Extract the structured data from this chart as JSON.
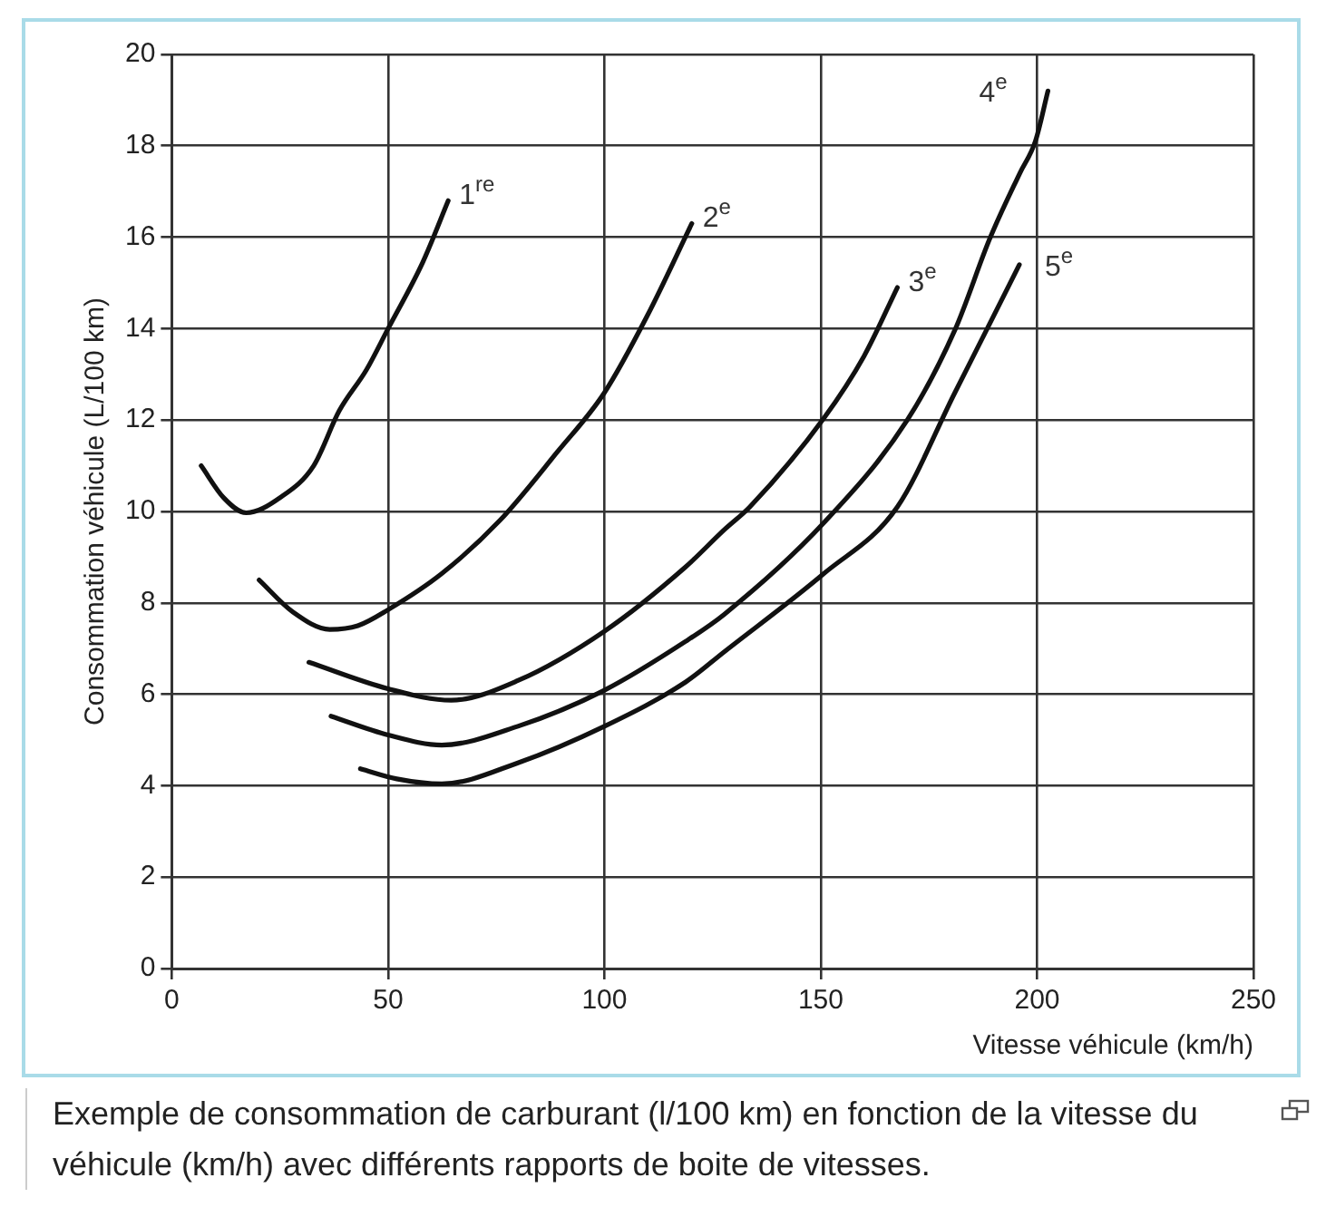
{
  "chart_data": {
    "type": "line",
    "xlabel": "Vitesse véhicule (km/h)",
    "ylabel": "Consommation véhicule (L/100 km)",
    "xlim": [
      0,
      250
    ],
    "xticks": [
      0,
      50,
      100,
      150,
      200,
      250
    ],
    "ylim": [
      0,
      20
    ],
    "yticks": [
      0,
      2,
      4,
      6,
      8,
      10,
      12,
      14,
      16,
      18,
      20
    ],
    "grid": true,
    "legend": false,
    "marker": "none",
    "line_style": "solid",
    "series": [
      {
        "color": "#111111",
        "x": [
          6.8,
          12,
          17.2,
          25,
          32.8,
          38.7,
          45,
          50,
          58,
          63.9
        ],
        "values": [
          11.0,
          10.3,
          9.97,
          10.3,
          11.0,
          12.2,
          13.1,
          14.0,
          15.45,
          16.8
        ]
      },
      {
        "color": "#111111",
        "x": [
          20.2,
          28,
          36.5,
          43,
          50,
          62.4,
          75.8,
          89.1,
          100,
          110,
          120.2
        ],
        "values": [
          8.5,
          7.8,
          7.42,
          7.5,
          7.85,
          8.64,
          9.8,
          11.3,
          12.6,
          14.3,
          16.3
        ]
      },
      {
        "color": "#111111",
        "x": [
          31.7,
          50,
          64.6,
          80,
          100,
          118.8,
          127.7,
          133.6,
          150.7,
          160,
          167.7
        ],
        "values": [
          6.7,
          6.12,
          5.87,
          6.3,
          7.38,
          8.79,
          9.6,
          10.1,
          12.04,
          13.4,
          14.9
        ]
      },
      {
        "color": "#111111",
        "x": [
          36.8,
          50,
          62.4,
          80,
          100,
          118.8,
          127.7,
          150.7,
          170,
          181,
          189.2,
          196,
          199.6,
          202.5
        ],
        "values": [
          5.52,
          5.11,
          4.89,
          5.3,
          6.09,
          7.16,
          7.75,
          9.75,
          12.0,
          13.97,
          16.0,
          17.4,
          18.1,
          19.2
        ]
      },
      {
        "color": "#111111",
        "x": [
          43.6,
          52,
          62.4,
          80,
          100,
          118.8,
          127.7,
          150.7,
          167.7,
          181,
          189,
          195.9
        ],
        "values": [
          4.37,
          4.15,
          4.04,
          4.5,
          5.3,
          6.27,
          6.93,
          8.64,
          10.1,
          12.6,
          14.1,
          15.4
        ]
      }
    ],
    "annotations": [
      {
        "text": "1$^{re}$",
        "x": 63.9,
        "y": 16.8
      },
      {
        "text": "2$^{e}$",
        "x": 120.2,
        "y": 16.3
      },
      {
        "text": "3$^{e}$",
        "x": 167.7,
        "y": 14.9
      },
      {
        "text": "4$^{e}$",
        "x": 202.5,
        "y": 19.2
      },
      {
        "text": "5$^{e}$",
        "x": 195.9,
        "y": 15.4
      },
      "Exemple de consommation de carburant (l/100 km) en fonction de la vitesse du véhicule (km/h) avec différents rapports de boite de vitesses."
    ]
  }
}
